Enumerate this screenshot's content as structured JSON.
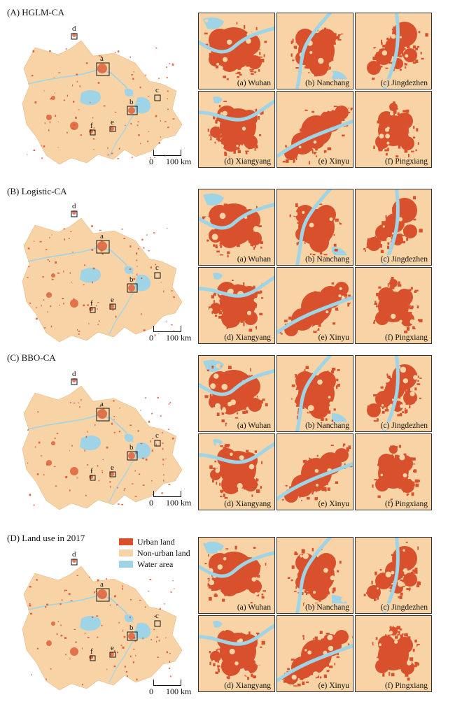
{
  "panels": [
    {
      "title": "(A) HGLM-CA"
    },
    {
      "title": "(B) Logistic-CA"
    },
    {
      "title": "(C) BBO-CA"
    },
    {
      "title": "(D) Land use in 2017"
    }
  ],
  "scale": {
    "zero": "0",
    "distance": "100 km"
  },
  "map_markers": [
    "a",
    "b",
    "c",
    "d",
    "e",
    "f"
  ],
  "cities": [
    "(a) Wuhan",
    "(b) Nanchang",
    "(c) Jingdezhen",
    "(d) Xiangyang",
    "(e) Xinyu",
    "(f) Pingxiang"
  ],
  "legend": [
    {
      "label": "Urban land",
      "color": "#d9512c"
    },
    {
      "label": "Non-urban land",
      "color": "#f8d3a5"
    },
    {
      "label": "Water area",
      "color": "#9fd3e6"
    }
  ],
  "colors": {
    "urban": "#d9512c",
    "nonurban": "#f8d3a5",
    "water": "#9fd3e6"
  }
}
